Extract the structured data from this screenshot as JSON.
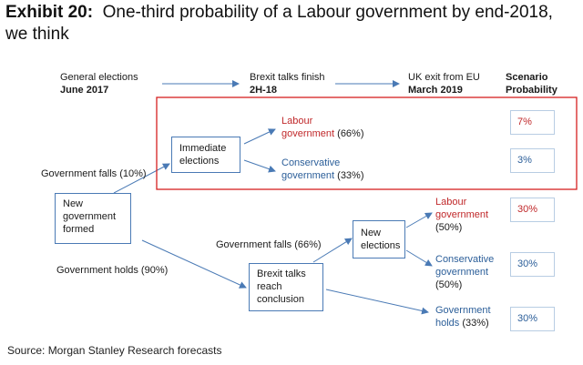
{
  "title": {
    "exhibit": "Exhibit 20:",
    "line1": "One-third probability of a Labour government by end-2018,",
    "line2": "we think"
  },
  "timeline": {
    "general_elections": "General elections",
    "general_elections_date": "June 2017",
    "brexit_talks": "Brexit talks finish",
    "brexit_talks_date": "2H-18",
    "uk_exit": "UK exit from EU",
    "uk_exit_date": "March 2019",
    "scenario_line1": "Scenario",
    "scenario_line2": "Probability"
  },
  "nodes": {
    "new_gov": [
      "New",
      "government",
      "formed"
    ],
    "immediate_elections": [
      "Immediate",
      "elections"
    ],
    "brexit_conclusion": [
      "Brexit talks",
      "reach",
      "conclusion"
    ],
    "new_elections": [
      "New",
      "elections"
    ]
  },
  "edges": {
    "gov_falls_10": "Government falls (10%)",
    "gov_holds_90": "Government holds (90%)",
    "gov_falls_66": "Government falls (66%)"
  },
  "outcomes": {
    "labour_1": {
      "name_line1": "Labour",
      "name_line2": "government",
      "pct": "(66%)"
    },
    "cons_1": {
      "name_line1": "Conservative",
      "name_line2": "government",
      "pct": "(33%)"
    },
    "labour_2": {
      "name_line1": "Labour",
      "name_line2": "government",
      "pct": "(50%)"
    },
    "cons_2": {
      "name_line1": "Conservative",
      "name_line2": "government",
      "pct": "(50%)"
    },
    "gov_holds_2": {
      "name_line1": "Government",
      "name_line2": "holds",
      "pct": "(33%)"
    }
  },
  "probabilities": [
    "7%",
    "3%",
    "30%",
    "30%",
    "30%"
  ],
  "colors": {
    "labour": "#c0282a",
    "conservative": "#2b5e99",
    "arrow": "#4a7ab5",
    "highlight": "#d62020"
  },
  "source": "Source: Morgan Stanley Research forecasts"
}
